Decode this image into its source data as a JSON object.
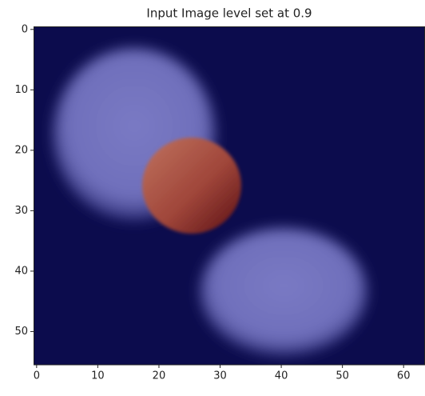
{
  "chart_data": {
    "type": "image",
    "title": "Input Image level set at 0.9",
    "xlim": [
      -0.5,
      63.5
    ],
    "ylim": [
      55.5,
      -0.5
    ],
    "xticks": [
      0,
      10,
      20,
      30,
      40,
      50,
      60
    ],
    "yticks": [
      0,
      10,
      20,
      30,
      40,
      50
    ]
  }
}
